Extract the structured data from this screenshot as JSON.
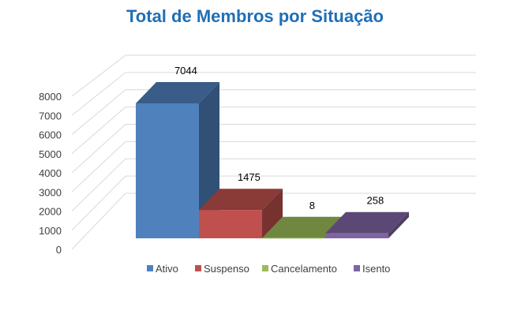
{
  "chart_data": {
    "type": "bar",
    "title": "Total de Membros por Situação",
    "xlabel": "",
    "ylabel": "",
    "categories": [
      "Ativo",
      "Suspenso",
      "Cancelamento",
      "Isento"
    ],
    "values": [
      7044,
      1475,
      8,
      258
    ],
    "data_labels": [
      "7044",
      "1475",
      "8",
      "258"
    ],
    "ylim": [
      0,
      8000
    ],
    "yticks": [
      "0",
      "1000",
      "2000",
      "3000",
      "4000",
      "5000",
      "6000",
      "7000",
      "8000"
    ],
    "grid": true,
    "legend_position": "bottom",
    "colors": [
      "#4f81bd",
      "#c0504d",
      "#9bbb59",
      "#8064a2"
    ],
    "projection": "3d"
  }
}
